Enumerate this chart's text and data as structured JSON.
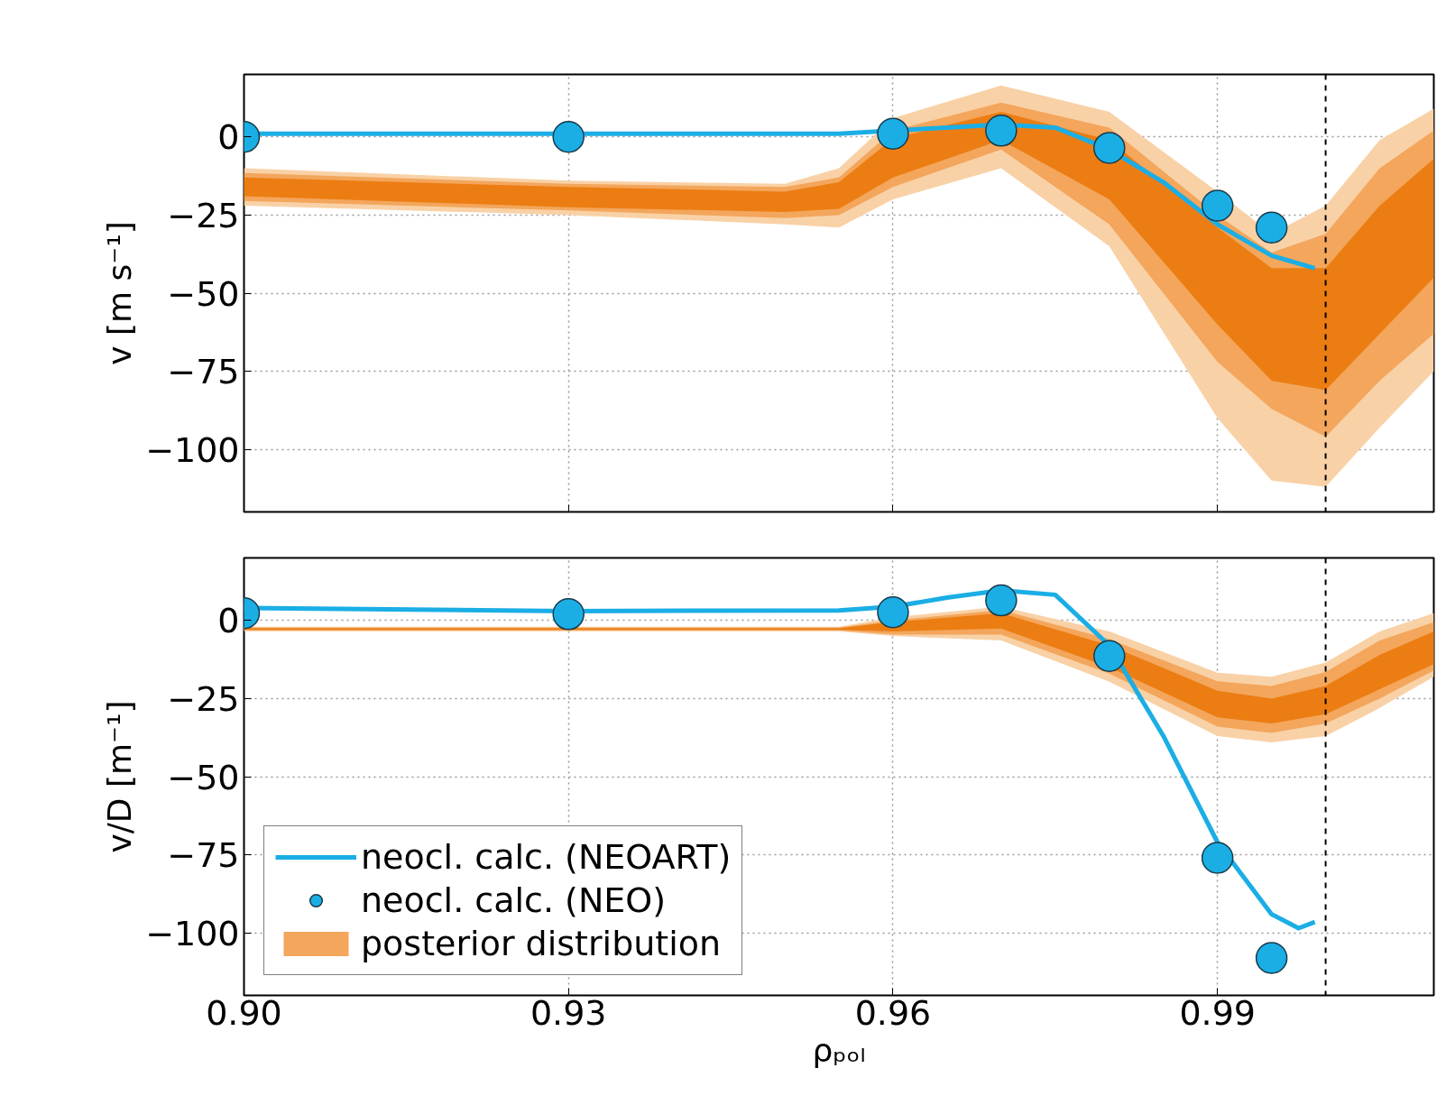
{
  "chart_data": [
    {
      "type": "line",
      "ylabel": "v [m s⁻¹]",
      "xlim": [
        0.9,
        1.01
      ],
      "ylim": [
        -120,
        20
      ],
      "xticks": [
        0.9,
        0.93,
        0.96,
        0.99
      ],
      "yticks": [
        0,
        -25,
        -50,
        -75,
        -100
      ],
      "tick_labels": "y",
      "grid": true,
      "ref_lines": [
        {
          "axis": "x",
          "value": 1.0,
          "color": "#000000",
          "line_style": "dashed"
        }
      ],
      "series": [
        {
          "color": "#f9d1a6",
          "x": [
            0.9,
            0.93,
            0.95,
            0.955,
            0.96,
            0.97,
            0.98,
            0.99,
            0.995,
            1.0,
            1.005,
            1.01
          ],
          "values": [
            null,
            null,
            null,
            null,
            null,
            null,
            null,
            null,
            null,
            null,
            null,
            null
          ],
          "lower": [
            -22,
            -25,
            -28,
            -29,
            -20,
            -10,
            -35,
            -90,
            -110,
            -112,
            -93,
            -75
          ],
          "upper": [
            -10,
            -14,
            -15,
            -10,
            6,
            16.5,
            8,
            -17.5,
            -31,
            -22,
            -1,
            9
          ]
        },
        {
          "color": "#f3a65c",
          "x": [
            0.9,
            0.93,
            0.95,
            0.955,
            0.96,
            0.97,
            0.98,
            0.99,
            0.995,
            1.0,
            1.005,
            1.01
          ],
          "values": [
            null,
            null,
            null,
            null,
            null,
            null,
            null,
            null,
            null,
            null,
            null,
            null
          ],
          "lower": [
            -20.5,
            -23.5,
            -26,
            -25,
            -16,
            -4,
            -28,
            -72,
            -87,
            -96,
            -78,
            -63
          ],
          "upper": [
            -11.5,
            -15,
            -16,
            -13,
            2,
            11,
            3,
            -25,
            -37,
            -31,
            -10,
            2
          ]
        },
        {
          "color": "#ec7d12",
          "x": [
            0.9,
            0.93,
            0.95,
            0.955,
            0.96,
            0.97,
            0.98,
            0.99,
            0.995,
            1.0,
            1.005,
            1.01
          ],
          "values": [
            null,
            null,
            null,
            null,
            null,
            null,
            null,
            null,
            null,
            null,
            null,
            null
          ],
          "lower": [
            -19,
            -22.5,
            -24,
            -23,
            -13,
            -1,
            -20,
            -60,
            -78,
            -81,
            -63,
            -45
          ],
          "upper": [
            -13,
            -16,
            -17.5,
            -14.5,
            -0.5,
            8,
            -1,
            -29,
            -42,
            -42,
            -22,
            -7
          ]
        },
        {
          "color": "#1aaee5",
          "line_style": "solid",
          "x": [
            0.9,
            0.93,
            0.955,
            0.96,
            0.965,
            0.97,
            0.975,
            0.98,
            0.985,
            0.99,
            0.995,
            0.999
          ],
          "values": [
            1,
            1,
            1,
            2,
            3,
            4,
            3,
            -4,
            -14.5,
            -28,
            -38,
            -42
          ]
        },
        {
          "type": "scatter",
          "color": "#1aaee5",
          "marker": "circle",
          "x": [
            0.9,
            0.93,
            0.96,
            0.97,
            0.98,
            0.99,
            0.995
          ],
          "values": [
            0,
            0,
            1,
            2,
            -3.5,
            -22,
            -29
          ]
        }
      ]
    },
    {
      "type": "line",
      "xlabel": "ρₚₒₗ",
      "ylabel": "v/D [m⁻¹]",
      "xlim": [
        0.9,
        1.01
      ],
      "ylim": [
        -120,
        20
      ],
      "xticks": [
        {
          "value": 0.9,
          "label": "0.90"
        },
        0.93,
        0.96,
        0.99
      ],
      "yticks": [
        0,
        -25,
        -50,
        -75,
        -100
      ],
      "grid": true,
      "legend": "bottom left",
      "ref_lines": [
        {
          "axis": "x",
          "value": 1.0,
          "color": "#000000",
          "line_style": "dashed"
        }
      ],
      "series": [
        {
          "color": "#f9d1a6",
          "x": [
            0.9,
            0.93,
            0.95,
            0.955,
            0.96,
            0.97,
            0.98,
            0.99,
            0.995,
            1.0,
            1.005,
            1.01
          ],
          "values": [
            null,
            null,
            null,
            null,
            null,
            null,
            null,
            null,
            null,
            null,
            null,
            null
          ],
          "lower": [
            -3.5,
            -3.5,
            -3.5,
            -3.5,
            -5,
            -6.4,
            -19.6,
            -37,
            -39,
            -37,
            -28,
            -18
          ],
          "upper": [
            -2,
            -2,
            -2,
            -2,
            1,
            4.4,
            -3.5,
            -16.7,
            -18,
            -13.5,
            -3.5,
            2.3
          ]
        },
        {
          "name": "posterior distribution",
          "color": "#f3a65c",
          "x": [
            0.9,
            0.93,
            0.95,
            0.955,
            0.96,
            0.97,
            0.98,
            0.99,
            0.995,
            1.0,
            1.005,
            1.01
          ],
          "values": [
            null,
            null,
            null,
            null,
            null,
            null,
            null,
            null,
            null,
            null,
            null,
            null
          ],
          "lower": [
            -3.2,
            -3.2,
            -3.2,
            -3.2,
            -4.5,
            -4.5,
            -17,
            -34,
            -36,
            -33,
            -25,
            -16
          ],
          "upper": [
            -2.3,
            -2.3,
            -2.3,
            -2.3,
            0,
            3.3,
            -6,
            -19.5,
            -21,
            -16.5,
            -6.4,
            -0.6
          ]
        },
        {
          "color": "#ec7d12",
          "x": [
            0.9,
            0.93,
            0.95,
            0.955,
            0.96,
            0.97,
            0.98,
            0.99,
            0.995,
            1.0,
            1.005,
            1.01
          ],
          "values": [
            null,
            null,
            null,
            null,
            null,
            null,
            null,
            null,
            null,
            null,
            null,
            null
          ],
          "lower": [
            -3,
            -3,
            -3,
            -3,
            -3.5,
            -2.6,
            -15,
            -31,
            -33,
            -30,
            -22,
            -14
          ],
          "upper": [
            -2.5,
            -2.5,
            -2.5,
            -2.5,
            -0.5,
            2.3,
            -8,
            -22.5,
            -25,
            -21,
            -11,
            -3.5
          ]
        },
        {
          "name": "neocl. calc. (NEOART)",
          "color": "#1aaee5",
          "line_style": "solid",
          "x": [
            0.9,
            0.93,
            0.955,
            0.96,
            0.965,
            0.97,
            0.975,
            0.98,
            0.985,
            0.99,
            0.995,
            0.9975,
            0.999
          ],
          "values": [
            4,
            3,
            3.2,
            4.4,
            7.3,
            9.6,
            8.2,
            -8,
            -37,
            -71,
            -94,
            -98.5,
            -96.5
          ]
        },
        {
          "type": "scatter",
          "name": "neocl. calc. (NEO)",
          "color": "#1aaee5",
          "marker": "circle",
          "x": [
            0.9,
            0.93,
            0.96,
            0.97,
            0.98,
            0.99,
            0.995
          ],
          "values": [
            2.3,
            2,
            2.6,
            6.4,
            -11.4,
            -76,
            -108
          ]
        }
      ]
    }
  ]
}
